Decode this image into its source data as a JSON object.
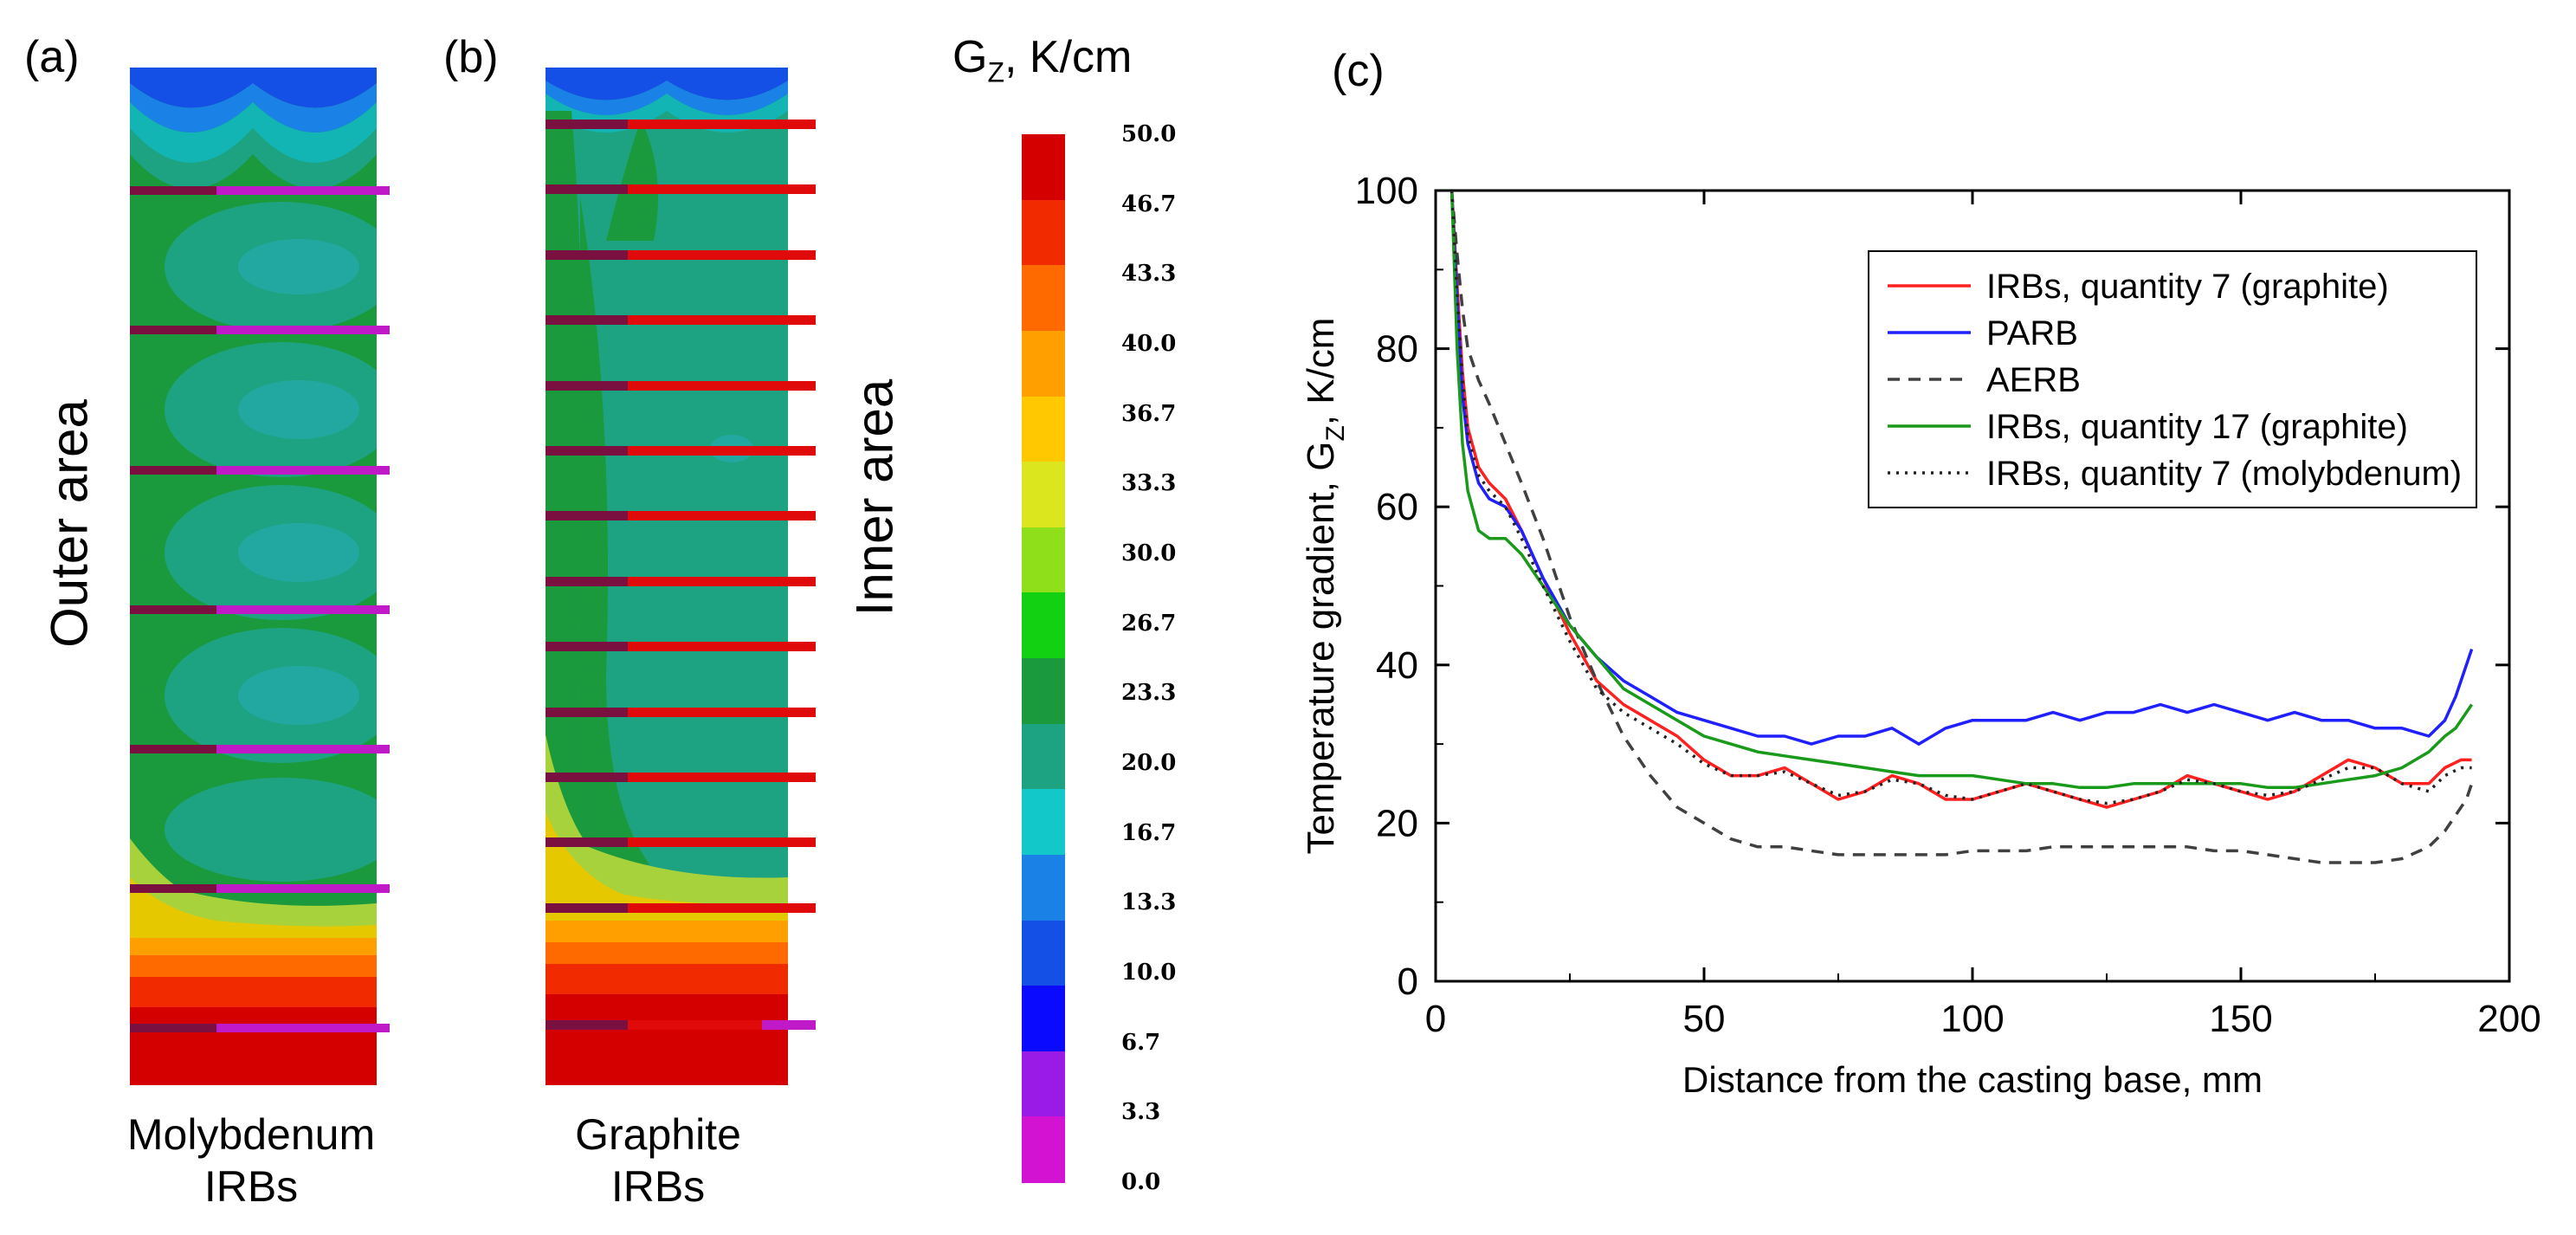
{
  "panels": {
    "a_label": "(a)",
    "b_label": "(b)",
    "c_label": "(c)",
    "a_caption_line1": "Molybdenum",
    "a_caption_line2": "IRBs",
    "b_caption_line1": "Graphite",
    "b_caption_line2": "IRBs",
    "outer_area": "Outer area",
    "inner_area": "Inner area"
  },
  "colorbar": {
    "title_main": "G",
    "title_sub": "Z",
    "title_unit": ", K/cm",
    "levels": [
      "50.0",
      "46.7",
      "43.3",
      "40.0",
      "36.7",
      "33.3",
      "30.0",
      "26.7",
      "23.3",
      "20.0",
      "16.7",
      "13.3",
      "10.0",
      "6.7",
      "3.3",
      "0.0"
    ],
    "colors": [
      "#d40000",
      "#f22a00",
      "#ff6a00",
      "#ffa000",
      "#ffc800",
      "#dce61e",
      "#8fe01a",
      "#12d012",
      "#1a9a3c",
      "#1ea382",
      "#12c8c8",
      "#1a82e6",
      "#1450e6",
      "#0a0aff",
      "#9a1ae6",
      "#d214d2"
    ]
  },
  "field_colors": {
    "red": "#d40000",
    "orange_red": "#f05000",
    "orange": "#ff9600",
    "yellow": "#e6c800",
    "lime": "#a8d23c",
    "green_mid": "#1a9a3c",
    "green_dark": "#18963a",
    "teal": "#1ea382",
    "teal_light": "#22a893",
    "cyan": "#12b4b4",
    "blue": "#1a82e6",
    "purple": "#8c1adc",
    "rod_molybdenum": "#c01ac8",
    "rod_graphite": "#e00a0a",
    "rod_dark": "#7a1040"
  },
  "chart_data": {
    "type": "line",
    "title": "",
    "xlabel": "Distance from the casting base, mm",
    "ylabel_main": "Temperature gradient, G",
    "ylabel_sub": "Z",
    "ylabel_unit": ", K/cm",
    "xlim": [
      0,
      200
    ],
    "ylim": [
      0,
      100
    ],
    "xticks": [
      0,
      50,
      100,
      150,
      200
    ],
    "yticks": [
      0,
      20,
      40,
      60,
      80,
      100
    ],
    "legend_position": "top-right",
    "series": [
      {
        "name": "IRBs, quantity 7 (graphite)",
        "color": "#ff2020",
        "dash": "solid",
        "x": [
          3,
          4,
          5,
          6,
          8,
          10,
          13,
          16,
          20,
          25,
          30,
          35,
          40,
          45,
          50,
          55,
          60,
          65,
          70,
          75,
          80,
          85,
          90,
          95,
          100,
          105,
          110,
          115,
          120,
          125,
          130,
          135,
          140,
          145,
          150,
          155,
          160,
          165,
          170,
          175,
          180,
          185,
          188,
          191,
          193
        ],
        "y": [
          100,
          88,
          77,
          70,
          65,
          63,
          61,
          57,
          51,
          44,
          38,
          35,
          33,
          31,
          28,
          26,
          26,
          27,
          25,
          23,
          24,
          26,
          25,
          23,
          23,
          24,
          25,
          24,
          23,
          22,
          23,
          24,
          26,
          25,
          24,
          23,
          24,
          26,
          28,
          27,
          25,
          25,
          27,
          28,
          28
        ]
      },
      {
        "name": "PARB",
        "color": "#2020ff",
        "dash": "solid",
        "x": [
          3,
          4,
          5,
          6,
          8,
          10,
          13,
          16,
          20,
          25,
          30,
          35,
          40,
          45,
          50,
          55,
          60,
          65,
          70,
          75,
          80,
          85,
          90,
          95,
          100,
          105,
          110,
          115,
          120,
          125,
          130,
          135,
          140,
          145,
          150,
          155,
          160,
          165,
          170,
          175,
          180,
          185,
          188,
          190,
          192,
          193
        ],
        "y": [
          100,
          86,
          74,
          68,
          63,
          61,
          60,
          57,
          51,
          45,
          41,
          38,
          36,
          34,
          33,
          32,
          31,
          31,
          30,
          31,
          31,
          32,
          30,
          32,
          33,
          33,
          33,
          34,
          33,
          34,
          34,
          35,
          34,
          35,
          34,
          33,
          34,
          33,
          33,
          32,
          32,
          31,
          33,
          36,
          40,
          42
        ]
      },
      {
        "name": "AERB",
        "color": "#404040",
        "dash": "14,10",
        "x": [
          3,
          4,
          5,
          6,
          8,
          10,
          13,
          16,
          20,
          25,
          30,
          35,
          40,
          45,
          50,
          55,
          60,
          65,
          70,
          75,
          80,
          85,
          90,
          95,
          100,
          105,
          110,
          115,
          120,
          125,
          130,
          135,
          140,
          145,
          150,
          155,
          160,
          165,
          170,
          175,
          180,
          185,
          188,
          190,
          192,
          193
        ],
        "y": [
          100,
          92,
          85,
          80,
          76,
          73,
          68,
          63,
          56,
          46,
          38,
          31,
          26,
          22,
          20,
          18,
          17,
          17,
          16.5,
          16,
          16,
          16,
          16,
          16,
          16.5,
          16.5,
          16.5,
          17,
          17,
          17,
          17,
          17,
          17,
          16.5,
          16.5,
          16,
          15.5,
          15,
          15,
          15,
          15.5,
          17,
          19,
          21,
          23,
          25
        ]
      },
      {
        "name": "IRBs, quantity 17 (graphite)",
        "color": "#1a9a1a",
        "dash": "solid",
        "x": [
          3,
          4,
          5,
          6,
          8,
          10,
          13,
          16,
          20,
          25,
          30,
          35,
          40,
          45,
          50,
          55,
          60,
          65,
          70,
          75,
          80,
          85,
          90,
          95,
          100,
          105,
          110,
          115,
          120,
          125,
          130,
          135,
          140,
          145,
          150,
          155,
          160,
          165,
          170,
          175,
          180,
          185,
          188,
          190,
          192,
          193
        ],
        "y": [
          100,
          80,
          68,
          62,
          57,
          56,
          56,
          54,
          50,
          45,
          41,
          37,
          35,
          33,
          31,
          30,
          29,
          28.5,
          28,
          27.5,
          27,
          26.5,
          26,
          26,
          26,
          25.5,
          25,
          25,
          24.5,
          24.5,
          25,
          25,
          25,
          25,
          25,
          24.5,
          24.5,
          25,
          25.5,
          26,
          27,
          29,
          31,
          32,
          34,
          35
        ]
      },
      {
        "name": "IRBs, quantity 7 (molybdenum)",
        "color": "#222222",
        "dash": "3,7",
        "x": [
          3,
          4,
          5,
          6,
          8,
          10,
          13,
          16,
          20,
          25,
          30,
          35,
          40,
          45,
          50,
          55,
          60,
          65,
          70,
          75,
          80,
          85,
          90,
          95,
          100,
          105,
          110,
          115,
          120,
          125,
          130,
          135,
          140,
          145,
          150,
          155,
          160,
          165,
          170,
          175,
          180,
          185,
          188,
          191,
          193
        ],
        "y": [
          100,
          87,
          76,
          69,
          64,
          62,
          60,
          56,
          50,
          43,
          37,
          34,
          32,
          30,
          27.5,
          26,
          26,
          26.5,
          25,
          23.5,
          24,
          25.5,
          25,
          23.5,
          23,
          24,
          25,
          24,
          23,
          22.5,
          23,
          24,
          25.5,
          25,
          24,
          23.5,
          24,
          25.5,
          27,
          27,
          25,
          24,
          26,
          27,
          27
        ]
      }
    ]
  }
}
